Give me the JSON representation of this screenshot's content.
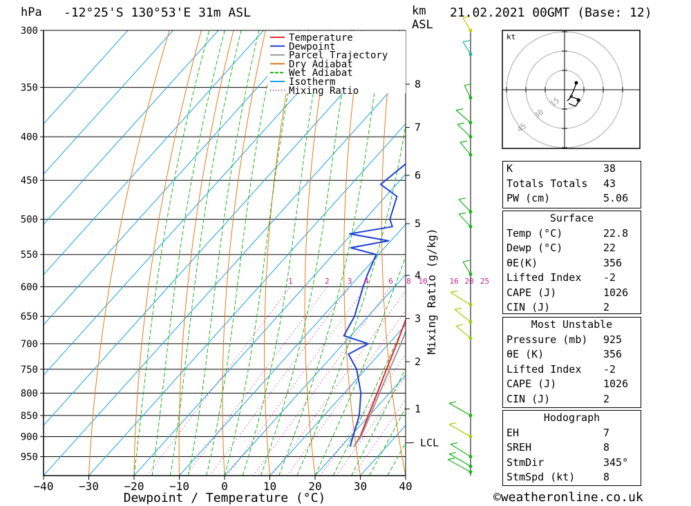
{
  "title": {
    "left": "-12°25'S 130°53'E 31m ASL",
    "right": "21.02.2021 00GMT (Base: 12)",
    "hpa_label": "hPa",
    "km_label": "km",
    "asl_label": "ASL"
  },
  "legend": [
    {
      "label": "Temperature",
      "color": "#e8262b"
    },
    {
      "label": "Dewpoint",
      "color": "#1f3fd8"
    },
    {
      "label": "Parcel Trajectory",
      "color": "#999999"
    },
    {
      "label": "Dry Adiabat",
      "color": "#e37a16"
    },
    {
      "label": "Wet Adiabat",
      "color": "#19b319"
    },
    {
      "label": "Isotherm",
      "color": "#1a9fe0"
    },
    {
      "label": "Mixing Ratio",
      "color": "#cc1e8c"
    }
  ],
  "chart_data": {
    "type": "line",
    "title": "-12°25'S 130°53'E 31m ASL",
    "xlabel": "Dewpoint / Temperature (°C)",
    "ylabel": "hPa",
    "xlim": [
      -40,
      40
    ],
    "ylim": [
      1000,
      300
    ],
    "x_ticks": [
      "−40",
      "−30",
      "−20",
      "−10",
      "0",
      "10",
      "20",
      "30",
      "40"
    ],
    "pressure_ticks": [
      "300",
      "350",
      "400",
      "450",
      "500",
      "550",
      "600",
      "650",
      "700",
      "750",
      "800",
      "850",
      "900",
      "950"
    ],
    "km_axis_label": "km ASL",
    "km_ticks": [
      {
        "p": 347,
        "label": "8"
      },
      {
        "p": 390,
        "label": "7"
      },
      {
        "p": 444,
        "label": "6"
      },
      {
        "p": 506,
        "label": "5"
      },
      {
        "p": 582,
        "label": "4"
      },
      {
        "p": 654,
        "label": "3"
      },
      {
        "p": 735,
        "label": "2"
      },
      {
        "p": 835,
        "label": "1"
      }
    ],
    "lcl": {
      "p": 915,
      "label": "LCL"
    },
    "mixing_ratio_axis_label": "Mixing Ratio (g/kg)",
    "mixing_ratio_labels": [
      "1",
      "2",
      "3",
      "4",
      "6",
      "8",
      "10",
      "16",
      "20",
      "25"
    ],
    "mixing_ratio_values": [
      1,
      2,
      3,
      4,
      6,
      8,
      10,
      16,
      20,
      25
    ],
    "series": [
      {
        "name": "Temperature",
        "points": [
          [
            925,
            22.8
          ],
          [
            900,
            22.2
          ],
          [
            850,
            19.8
          ],
          [
            800,
            17.3
          ],
          [
            750,
            14.6
          ],
          [
            700,
            11.8
          ],
          [
            650,
            8.6
          ],
          [
            600,
            4.4
          ],
          [
            570,
            2.5
          ],
          [
            550,
            -0.5
          ],
          [
            500,
            -5.2
          ],
          [
            470,
            -7.9
          ],
          [
            450,
            -10.5
          ],
          [
            400,
            -15.5
          ],
          [
            370,
            -19.9
          ]
        ]
      },
      {
        "name": "Dewpoint",
        "points": [
          [
            925,
            22.0
          ],
          [
            900,
            20.6
          ],
          [
            850,
            17.8
          ],
          [
            800,
            13.7
          ],
          [
            750,
            8.0
          ],
          [
            720,
            3.2
          ],
          [
            700,
            5.5
          ],
          [
            685,
            -1.5
          ],
          [
            650,
            -3.0
          ],
          [
            600,
            -7.0
          ],
          [
            580,
            -8.5
          ],
          [
            550,
            -10.5
          ],
          [
            540,
            -17.5
          ],
          [
            530,
            -10.5
          ],
          [
            520,
            -20.5
          ],
          [
            510,
            -12.5
          ],
          [
            500,
            -14.5
          ],
          [
            470,
            -17.5
          ],
          [
            455,
            -23.5
          ],
          [
            430,
            -22.0
          ],
          [
            420,
            -17.5
          ],
          [
            400,
            -23.5
          ],
          [
            350,
            -30.0
          ],
          [
            310,
            -35.0
          ],
          [
            300,
            -36.0
          ]
        ]
      },
      {
        "name": "Parcel Trajectory",
        "points": [
          [
            925,
            22.8
          ],
          [
            900,
            22.4
          ],
          [
            850,
            20.2
          ],
          [
            800,
            17.8
          ],
          [
            750,
            15.3
          ],
          [
            700,
            12.7
          ],
          [
            650,
            9.6
          ],
          [
            600,
            6.6
          ],
          [
            550,
            3.6
          ],
          [
            500,
            0.4
          ],
          [
            450,
            -3.9
          ],
          [
            400,
            -9.9
          ],
          [
            370,
            -14.0
          ]
        ]
      }
    ]
  },
  "hodograph": {
    "unit_label": "kt",
    "ring_labels": [
      "15",
      "30",
      "45"
    ],
    "ring_values": [
      15,
      30,
      45
    ]
  },
  "indices": {
    "basic": [
      {
        "label": "K",
        "value": "38"
      },
      {
        "label": "Totals Totals",
        "value": "43"
      },
      {
        "label": "PW (cm)",
        "value": "5.06"
      }
    ],
    "surface": {
      "header": "Surface",
      "rows": [
        {
          "label": "Temp (°C)",
          "value": "22.8"
        },
        {
          "label": "Dewp (°C)",
          "value": "22"
        },
        {
          "label": "θE(K)",
          "value": "356"
        },
        {
          "label": "Lifted Index",
          "value": "-2"
        },
        {
          "label": "CAPE (J)",
          "value": "1026"
        },
        {
          "label": "CIN (J)",
          "value": "2"
        }
      ]
    },
    "most_unstable": {
      "header": "Most Unstable",
      "rows": [
        {
          "label": "Pressure (mb)",
          "value": "925"
        },
        {
          "label": "θE (K)",
          "value": "356"
        },
        {
          "label": "Lifted Index",
          "value": "-2"
        },
        {
          "label": "CAPE (J)",
          "value": "1026"
        },
        {
          "label": "CIN (J)",
          "value": "2"
        }
      ]
    },
    "hodograph_table": {
      "header": "Hodograph",
      "rows": [
        {
          "label": "EH",
          "value": "7"
        },
        {
          "label": "SREH",
          "value": "8"
        },
        {
          "label": "StmDir",
          "value": "345°"
        },
        {
          "label": "StmSpd (kt)",
          "value": "8"
        }
      ]
    }
  },
  "copyright": "©weatheronline.co.uk"
}
